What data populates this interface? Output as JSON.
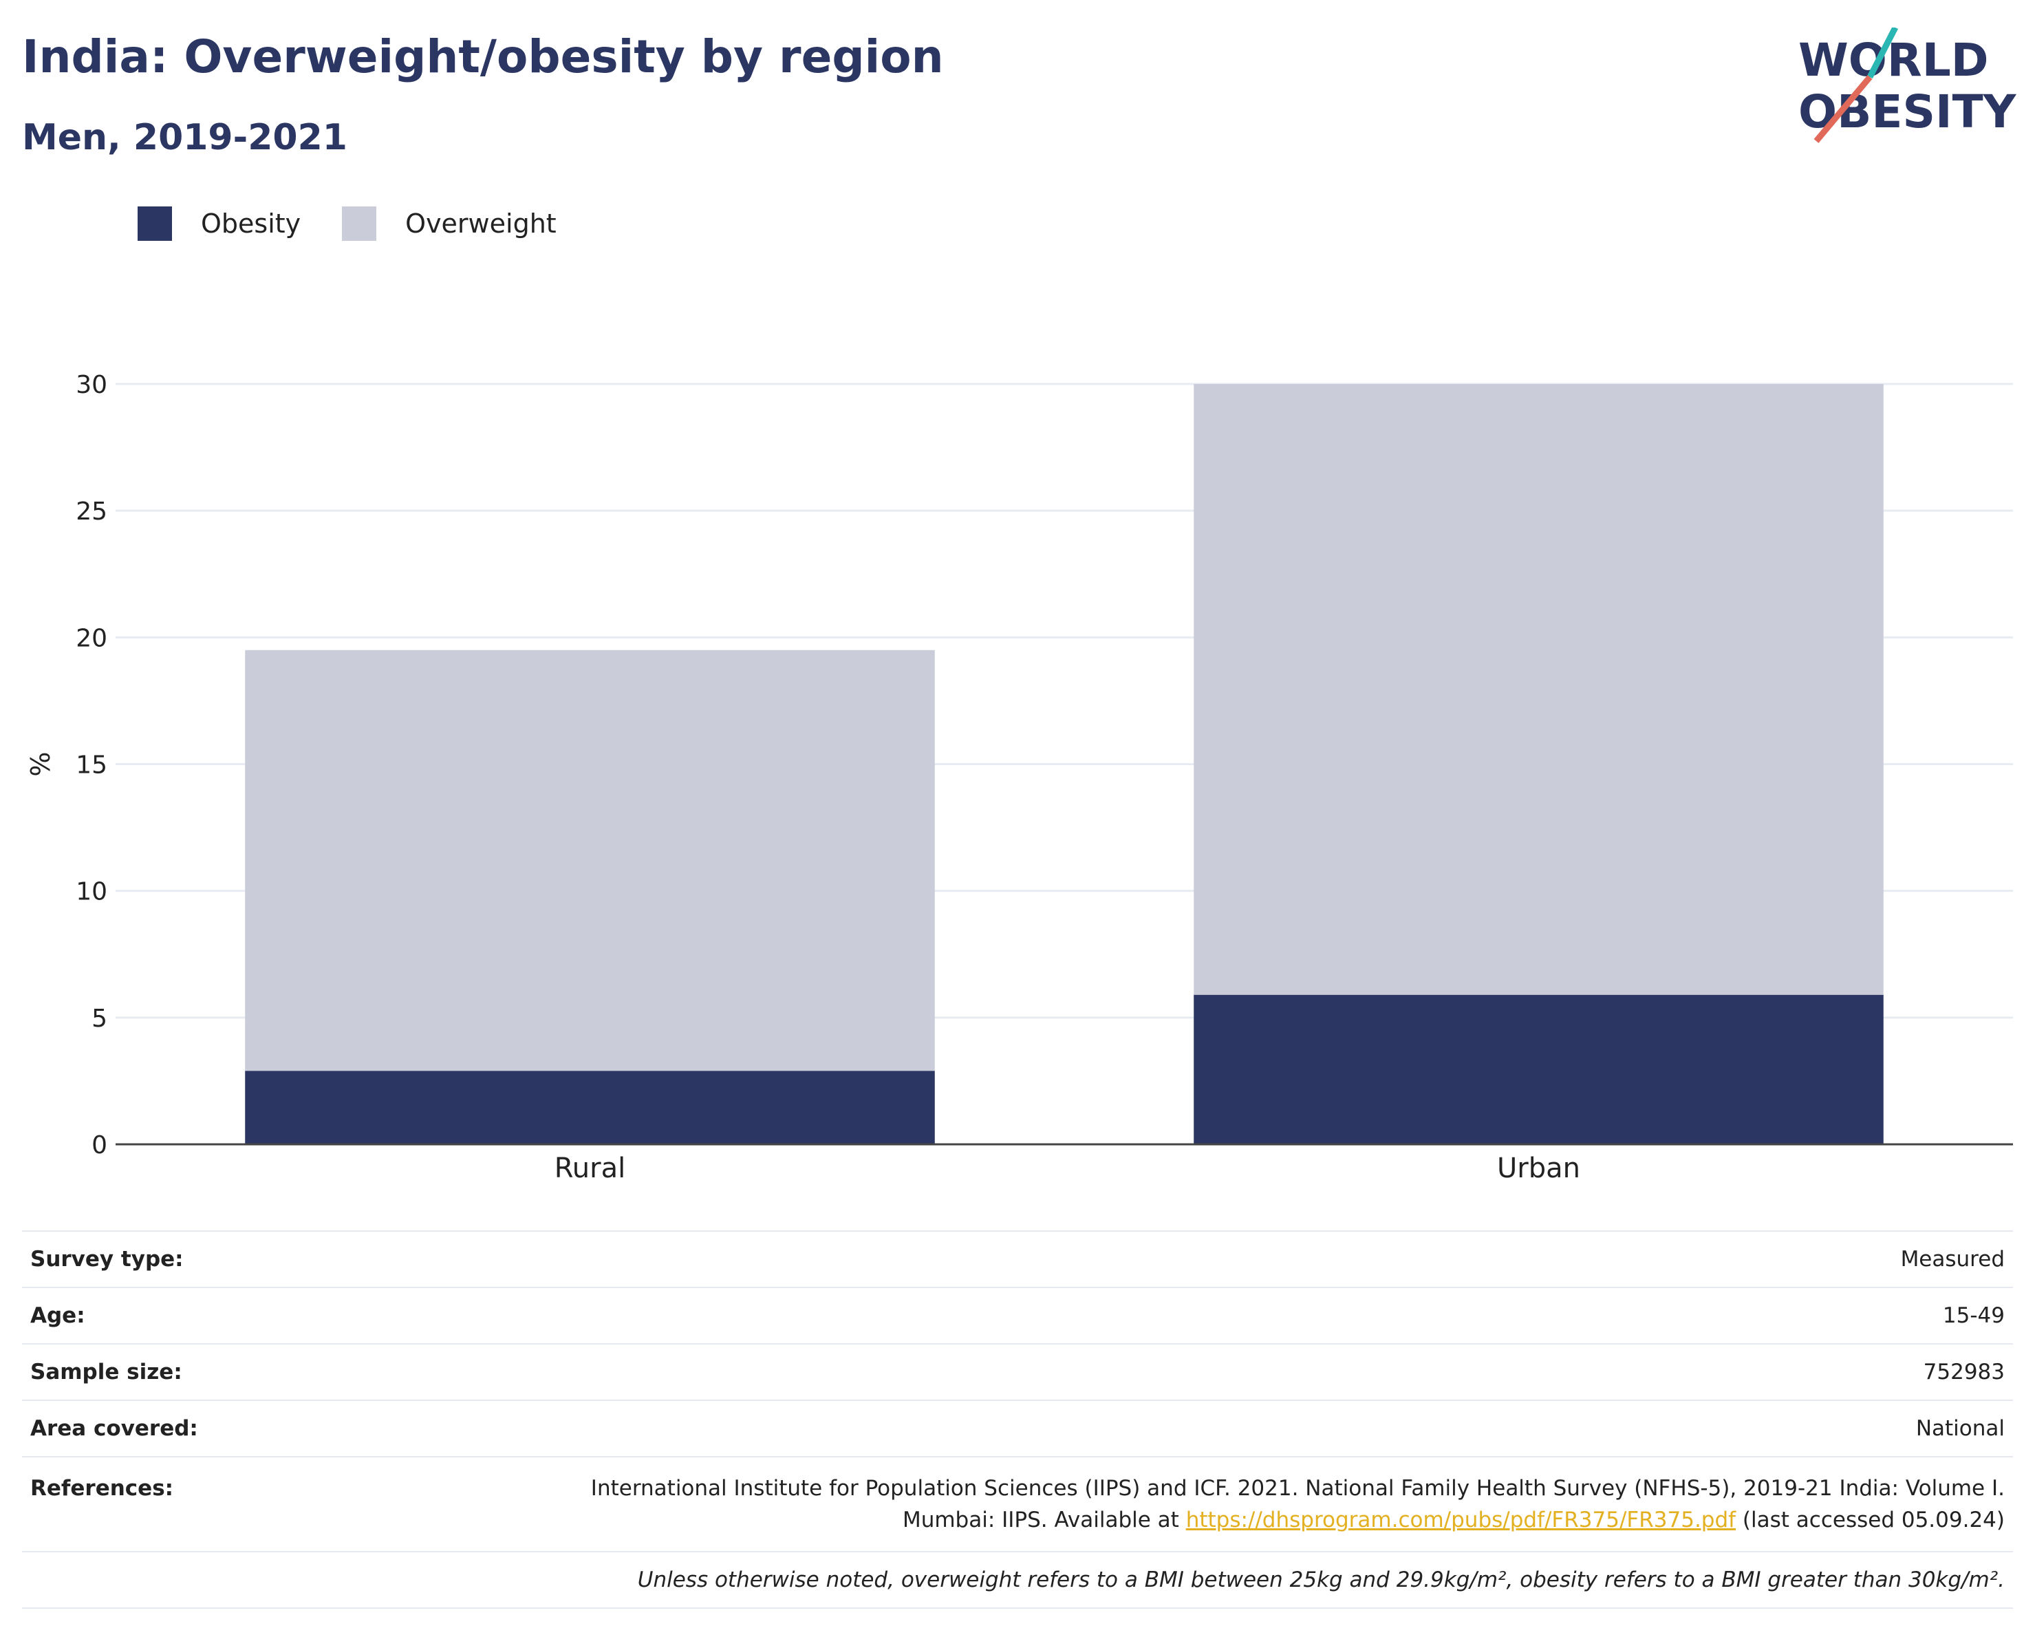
{
  "title": "India: Overweight/obesity by region",
  "subtitle": "Men, 2019-2021",
  "logo": {
    "line1": "WORLD",
    "line2": "OBESITY"
  },
  "colors": {
    "obesity": "#2b3663",
    "overweight": "#cacdd9",
    "title": "#2b3663",
    "link": "#e3b021"
  },
  "legend": [
    {
      "label": "Obesity",
      "color": "#2b3663"
    },
    {
      "label": "Overweight",
      "color": "#cacdd9"
    }
  ],
  "chart_data": {
    "type": "bar",
    "stacked": true,
    "categories": [
      "Rural",
      "Urban"
    ],
    "series": [
      {
        "name": "Obesity",
        "values": [
          2.9,
          5.9
        ]
      },
      {
        "name": "Overweight",
        "values": [
          16.6,
          24.1
        ]
      }
    ],
    "ylabel": "%",
    "ylim": [
      0,
      30
    ],
    "yticks": [
      0,
      5,
      10,
      15,
      20,
      25,
      30
    ],
    "grid": true,
    "legend_position": "top-left"
  },
  "info": {
    "survey_type": {
      "label": "Survey type:",
      "value": "Measured"
    },
    "age": {
      "label": "Age:",
      "value": "15-49"
    },
    "sample_size": {
      "label": "Sample size:",
      "value": "752983"
    },
    "area": {
      "label": "Area covered:",
      "value": "National"
    },
    "references": {
      "label": "References:",
      "line1": "International Institute for Population Sciences (IIPS) and ICF. 2021. National Family Health Survey (NFHS-5), 2019-21 India: Volume I.",
      "line2_prefix": "Mumbai: IIPS. Available at ",
      "link": "https://dhsprogram.com/pubs/pdf/FR375/FR375.pdf",
      "line2_suffix": " (last accessed 05.09.24)"
    },
    "note": "Unless otherwise noted, overweight refers to a BMI between 25kg and 29.9kg/m², obesity refers to a BMI greater than 30kg/m²."
  }
}
